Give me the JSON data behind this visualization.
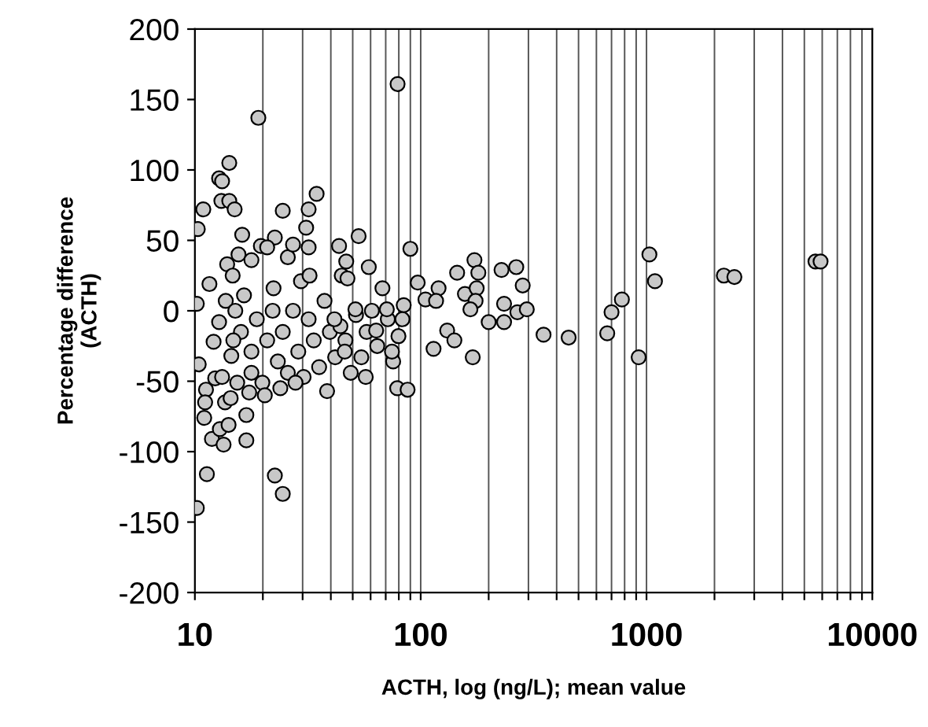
{
  "chart_data": {
    "type": "scatter",
    "xlabel": "ACTH, log (ng/L); mean value",
    "ylabel": "Percentage difference\n(ACTH)",
    "log": "x",
    "grid": "x",
    "marker": "circle",
    "xlim": [
      10,
      10000
    ],
    "ylim": [
      -200,
      200
    ],
    "xticks": [
      10,
      {
        "value": 20,
        "label": null
      },
      {
        "value": 30,
        "label": null
      },
      {
        "value": 40,
        "label": null
      },
      {
        "value": 50,
        "label": null
      },
      {
        "value": 60,
        "label": null
      },
      {
        "value": 70,
        "label": null
      },
      {
        "value": 80,
        "label": null
      },
      {
        "value": 90,
        "label": null
      },
      100,
      {
        "value": 200,
        "label": null
      },
      {
        "value": 300,
        "label": null
      },
      {
        "value": 400,
        "label": null
      },
      {
        "value": 500,
        "label": null
      },
      {
        "value": 600,
        "label": null
      },
      {
        "value": 700,
        "label": null
      },
      {
        "value": 800,
        "label": null
      },
      {
        "value": 900,
        "label": null
      },
      1000,
      {
        "value": 2000,
        "label": null
      },
      {
        "value": 3000,
        "label": null
      },
      {
        "value": 4000,
        "label": null
      },
      {
        "value": 5000,
        "label": null
      },
      {
        "value": 6000,
        "label": null
      },
      {
        "value": 7000,
        "label": null
      },
      {
        "value": 8000,
        "label": null
      },
      {
        "value": 9000,
        "label": null
      },
      10000
    ],
    "yticks": [
      -200,
      -150,
      -100,
      -50,
      0,
      50,
      100,
      150,
      200
    ],
    "series": [
      {
        "color": "#c8c8c8",
        "x": [
          10.2,
          10.3,
          10.2,
          10.4,
          10.9,
          11.2,
          11.1,
          11.0,
          11.3,
          11.6,
          11.9,
          12.1,
          12.3,
          12.8,
          13.2,
          13.1,
          12.9,
          13.4,
          14.2,
          14.2,
          15.0,
          13.9,
          14.7,
          13.7,
          12.8,
          13.6,
          14.4,
          14.1,
          16.2,
          15.6,
          17.8,
          16.9,
          16.9,
          19.1,
          19.6,
          22.6,
          20.9,
          22.3,
          24.5,
          22.6,
          24.5,
          25.8,
          27.2,
          31.9,
          31.1,
          34.6,
          31.9,
          29.5,
          32.2,
          38.5,
          43.5,
          46.8,
          44.7,
          47.4,
          53.1,
          58.9,
          79,
          15.1,
          16.0,
          17.8,
          18.8,
          19.9,
          20.9,
          22.1,
          23.3,
          24.5,
          25.8,
          27.2,
          28.7,
          30.3,
          31.9,
          33.6,
          35.5,
          37.5,
          39.6,
          41.8,
          44.1,
          46.4,
          49.0,
          51.7,
          54.6,
          57.6,
          60.8,
          64.2,
          67.7,
          71.5,
          75.5,
          79.7,
          84.1,
          16.5,
          14.5,
          13.2,
          15.4,
          17.4,
          20.4,
          23.9,
          27.9,
          17.8,
          14.8,
          90,
          78.7,
          87.5,
          74.6,
          83,
          97,
          105,
          120,
          117,
          131,
          114,
          141,
          145,
          157,
          173,
          180,
          177,
          175,
          170,
          166,
          200,
          228,
          265,
          283,
          234,
          234,
          268,
          295,
          350,
          452,
          670,
          700,
          778,
          923,
          1030,
          1090,
          2200,
          2450,
          5600,
          5900,
          57.1,
          46.1,
          63.5,
          70.8,
          51.4,
          41.5
        ],
        "values": [
          5,
          58,
          -140,
          -38,
          72,
          -56,
          -65,
          -76,
          -116,
          19,
          -91,
          -22,
          -48,
          94,
          92,
          78,
          -84,
          -95,
          105,
          78,
          72,
          33,
          25,
          7,
          -8,
          -65,
          -62,
          -81,
          54,
          40,
          36,
          -74,
          -92,
          137,
          46,
          52,
          45,
          16,
          71,
          -117,
          -130,
          38,
          47,
          72,
          59,
          83,
          45,
          21,
          25,
          -57,
          46,
          35,
          25,
          23,
          53,
          31,
          161,
          0,
          -15,
          -29,
          -6,
          -51,
          -21,
          0,
          -36,
          -15,
          -44,
          0,
          -29,
          -47,
          -6,
          -21,
          -40,
          7,
          -15,
          -33,
          -11,
          -21,
          -44,
          -3,
          -33,
          -15,
          0,
          -25,
          16,
          -6,
          -36,
          -18,
          4,
          11,
          -32,
          -47,
          -51,
          -58,
          -60,
          -55,
          -51,
          -44,
          -21,
          44,
          -55,
          -56,
          -29,
          -6,
          20,
          8,
          16,
          7,
          -14,
          -27,
          -21,
          27,
          12,
          36,
          27,
          16,
          7,
          -33,
          1,
          -8,
          29,
          31,
          18,
          5,
          -8,
          -1,
          1,
          -17,
          -19,
          -16,
          -1,
          8,
          -33,
          40,
          21,
          25,
          24,
          35,
          35,
          -47,
          -29,
          -14,
          1,
          1,
          -6
        ]
      }
    ]
  }
}
